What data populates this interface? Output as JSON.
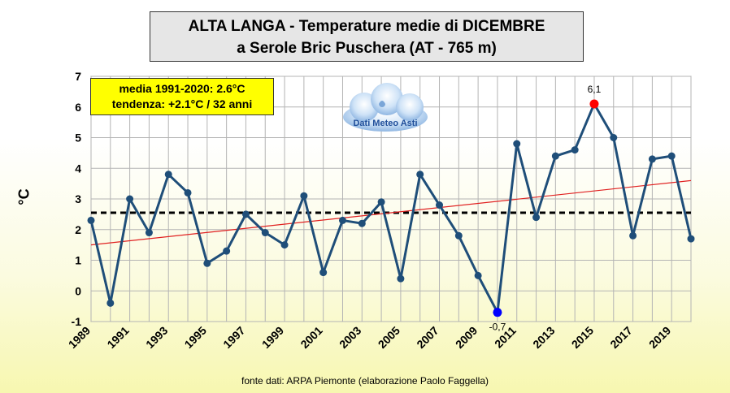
{
  "title": {
    "line1": "ALTA LANGA - Temperature medie di DICEMBRE",
    "line2": "a Serole Bric Puschera (AT - 765 m)"
  },
  "stats": {
    "line1": "media 1991-2020: 2.6°C",
    "line2": "tendenza: +2.1°C / 32 anni"
  },
  "logo": {
    "text": "Dati Meteo Asti",
    "icon": "cloud-icon"
  },
  "source": "fonte dati: ARPA Piemonte (elaborazione Paolo Faggella)",
  "colors": {
    "series": "#1f4e79",
    "trend": "#e02020",
    "max_marker": "#ff0000",
    "min_marker": "#0000ff",
    "grid": "#b4b4b4"
  },
  "chart_data": {
    "type": "line",
    "ylabel": "°C",
    "ylim": [
      -1,
      7
    ],
    "xlim": [
      1989,
      2020
    ],
    "y_ticks": [
      -1,
      0,
      1,
      2,
      3,
      4,
      5,
      6,
      7
    ],
    "x_tick_labels": [
      1989,
      1991,
      1993,
      1995,
      1997,
      1999,
      2001,
      2003,
      2005,
      2007,
      2009,
      2011,
      2013,
      2015,
      2017,
      2019
    ],
    "grid": true,
    "x": [
      1989,
      1990,
      1991,
      1992,
      1993,
      1994,
      1995,
      1996,
      1997,
      1998,
      1999,
      2000,
      2001,
      2002,
      2003,
      2004,
      2005,
      2006,
      2007,
      2008,
      2009,
      2010,
      2011,
      2012,
      2013,
      2014,
      2015,
      2016,
      2017,
      2018,
      2019,
      2020
    ],
    "values": [
      2.3,
      -0.4,
      3.0,
      1.9,
      3.8,
      3.2,
      0.9,
      1.3,
      2.5,
      1.9,
      1.5,
      3.1,
      0.6,
      2.3,
      2.2,
      2.9,
      0.4,
      3.8,
      2.8,
      1.8,
      0.5,
      -0.7,
      4.8,
      2.4,
      4.4,
      4.6,
      6.1,
      5.0,
      1.8,
      4.3,
      4.4,
      1.7
    ],
    "mean_line": 2.55,
    "trend_line": {
      "start": [
        1989,
        1.5
      ],
      "end": [
        2020,
        3.6
      ]
    },
    "annotations": [
      {
        "x": 2015,
        "y": 6.1,
        "text": "6,1",
        "kind": "max"
      },
      {
        "x": 2010,
        "y": -0.7,
        "text": "-0,7",
        "kind": "min"
      }
    ]
  }
}
